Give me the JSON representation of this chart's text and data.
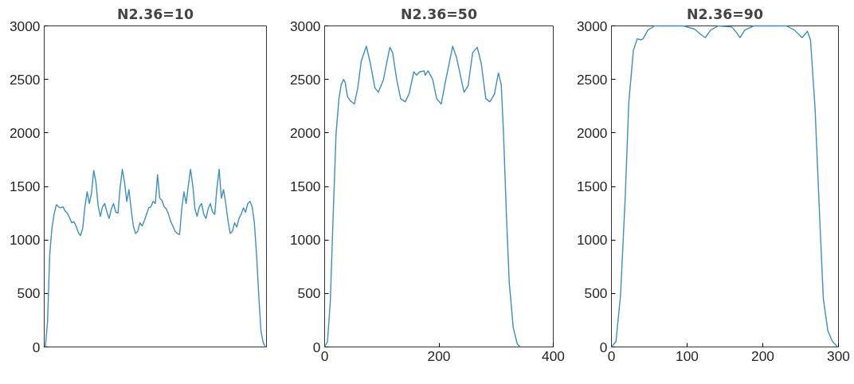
{
  "chart_data": [
    {
      "type": "line",
      "title": "N2.36=10",
      "categories": [
        null,
        null,
        null,
        null,
        null,
        null,
        null,
        null,
        null,
        null,
        null,
        null,
        null,
        null,
        null,
        null,
        null,
        null,
        null,
        null,
        null,
        null,
        null,
        null,
        null,
        null,
        null,
        null,
        null,
        null,
        null,
        null,
        null,
        null,
        null,
        null,
        null,
        null,
        null,
        null,
        null,
        null,
        null,
        null,
        null,
        null,
        null,
        null,
        null,
        null,
        null,
        null,
        null,
        null,
        null,
        null,
        null,
        null,
        null,
        null,
        null,
        null,
        null,
        null,
        null,
        null,
        null,
        null,
        null,
        null,
        null,
        null,
        null,
        null,
        null,
        null,
        null,
        null,
        null,
        null,
        null,
        null,
        null,
        null,
        null,
        null,
        null,
        null,
        null,
        null,
        null,
        null,
        null,
        null,
        null,
        null,
        null,
        null,
        null,
        null,
        null
      ],
      "series": [
        {
          "color": "#3b8fc4",
          "values": [
            0,
            230,
            860,
            1110,
            1240,
            1330,
            1310,
            1300,
            1310,
            1270,
            1250,
            1210,
            1160,
            1170,
            1130,
            1070,
            1040,
            1110,
            1310,
            1450,
            1340,
            1440,
            1650,
            1540,
            1320,
            1220,
            1310,
            1340,
            1260,
            1200,
            1290,
            1340,
            1260,
            1250,
            1490,
            1660,
            1540,
            1360,
            1470,
            1290,
            1130,
            1060,
            1080,
            1160,
            1130,
            1180,
            1240,
            1300,
            1310,
            1360,
            1340,
            1610,
            1390,
            1370,
            1310,
            1290,
            1240,
            1170,
            1130,
            1080,
            1060,
            1050,
            1290,
            1450,
            1340,
            1510,
            1660,
            1510,
            1290,
            1220,
            1310,
            1340,
            1240,
            1200,
            1290,
            1340,
            1260,
            1240,
            1490,
            1660,
            1390,
            1470,
            1340,
            1180,
            1060,
            1080,
            1160,
            1120,
            1200,
            1240,
            1300,
            1260,
            1340,
            1360,
            1310,
            1160,
            860,
            480,
            150,
            40,
            0
          ]
        }
      ],
      "ylim": [
        0,
        3000
      ],
      "yticks": [
        0,
        500,
        1000,
        1500,
        2000,
        2500,
        3000
      ],
      "grid": false,
      "tick_labels": "y"
    },
    {
      "type": "line",
      "title": "N2.36=50",
      "series": [
        {
          "color": "#3b8fc4",
          "x": [
            0,
            5,
            10,
            15,
            20,
            25,
            29,
            33,
            36,
            40,
            45,
            52,
            58,
            64,
            73,
            80,
            88,
            94,
            103,
            114,
            119,
            126,
            133,
            141,
            148,
            156,
            161,
            166,
            174,
            176,
            181,
            189,
            196,
            204,
            211,
            224,
            231,
            239,
            244,
            251,
            259,
            267,
            274,
            282,
            289,
            297,
            304,
            309,
            313,
            318,
            323,
            330,
            337,
            342
          ],
          "values": [
            0,
            50,
            430,
            1240,
            1990,
            2320,
            2450,
            2500,
            2470,
            2340,
            2300,
            2270,
            2420,
            2670,
            2810,
            2650,
            2420,
            2380,
            2500,
            2800,
            2750,
            2500,
            2320,
            2290,
            2370,
            2570,
            2540,
            2570,
            2580,
            2540,
            2580,
            2500,
            2320,
            2270,
            2470,
            2810,
            2700,
            2500,
            2380,
            2440,
            2750,
            2800,
            2650,
            2320,
            2290,
            2360,
            2560,
            2450,
            1990,
            1240,
            600,
            180,
            30,
            0
          ]
        }
      ],
      "xlim": [
        0,
        400
      ],
      "xticks": [
        0,
        200,
        400
      ],
      "ylim": [
        0,
        3000
      ],
      "yticks": [
        0,
        500,
        1000,
        1500,
        2000,
        2500,
        3000
      ],
      "grid": false
    },
    {
      "type": "line",
      "title": "N2.36=90",
      "series": [
        {
          "color": "#3b8fc4",
          "x": [
            0,
            6,
            12,
            18,
            23,
            29,
            34,
            39,
            42,
            48,
            57,
            76,
            95,
            110,
            118,
            124,
            131,
            141,
            159,
            165,
            170,
            176,
            188,
            209,
            231,
            242,
            252,
            259,
            263,
            269,
            275,
            280,
            286,
            292,
            299
          ],
          "values": [
            0,
            50,
            480,
            1360,
            2290,
            2770,
            2880,
            2870,
            2880,
            2960,
            3000,
            3000,
            3000,
            2970,
            2920,
            2890,
            2960,
            3000,
            2990,
            2940,
            2890,
            2960,
            3000,
            3000,
            3000,
            2960,
            2890,
            2950,
            2870,
            2240,
            1240,
            450,
            150,
            50,
            0
          ]
        }
      ],
      "xlim": [
        0,
        300
      ],
      "xticks": [
        0,
        100,
        200,
        300
      ],
      "ylim": [
        0,
        3000
      ],
      "yticks": [
        0,
        500,
        1000,
        1500,
        2000,
        2500,
        3000
      ],
      "grid": false
    }
  ]
}
